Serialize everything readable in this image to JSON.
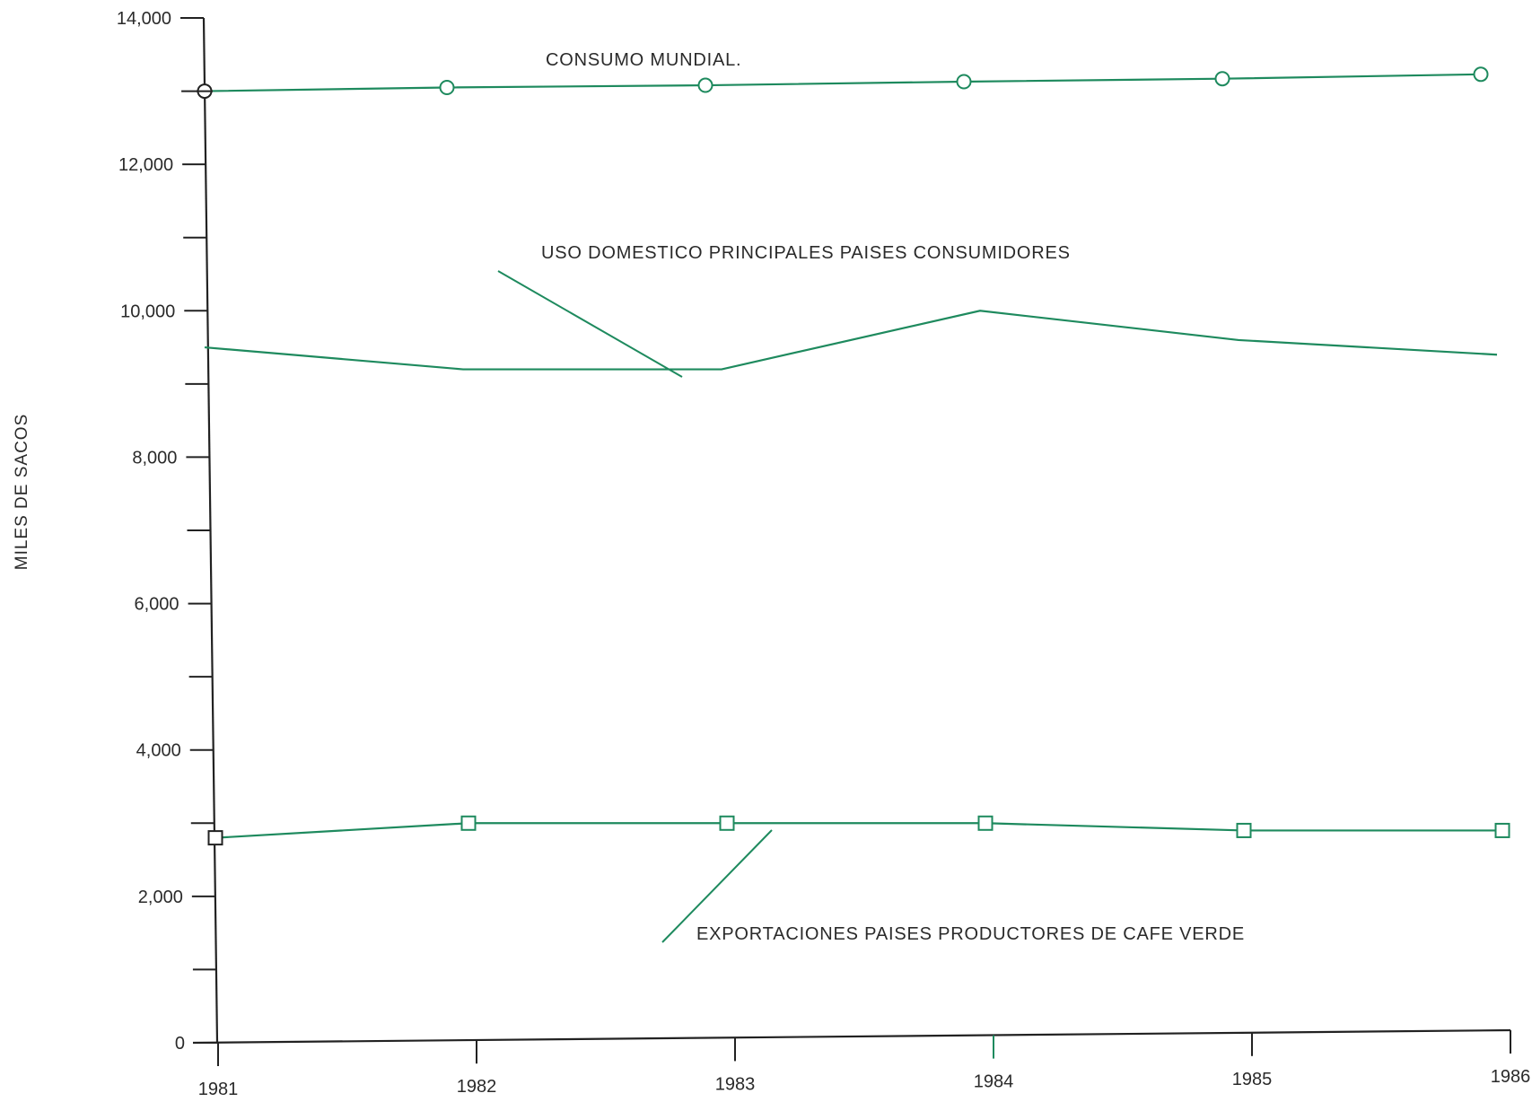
{
  "colors": {
    "series": "#1e8a5e",
    "axis": "#222222",
    "text": "#2a2a2a"
  },
  "chart_data": {
    "type": "line",
    "title": "",
    "xlabel": "",
    "ylabel": "MILES DE SACOS",
    "categories": [
      "1981",
      "1982",
      "1983",
      "1984",
      "1985",
      "1986"
    ],
    "x": [
      1981,
      1982,
      1983,
      1984,
      1985,
      1986
    ],
    "ylim": [
      0,
      14000
    ],
    "yticks": [
      0,
      2000,
      4000,
      6000,
      8000,
      10000,
      12000,
      14000
    ],
    "ytick_labels": [
      "0",
      "2,000",
      "4,000",
      "6,000",
      "8,000",
      "10,000",
      "12,000",
      "14,000"
    ],
    "grid": false,
    "legend": "none",
    "series": [
      {
        "name": "CONSUMO MUNDIAL.",
        "marker": "circle",
        "values": [
          13000,
          13050,
          13080,
          13130,
          13170,
          13230
        ]
      },
      {
        "name": "USO DOMESTICO PRINCIPALES PAISES CONSUMIDORES",
        "marker": "none",
        "values": [
          9500,
          9200,
          9200,
          10000,
          9600,
          9400
        ]
      },
      {
        "name": "EXPORTACIONES PAISES PRODUCTORES DE CAFE VERDE",
        "marker": "square",
        "values": [
          2800,
          3000,
          3000,
          3000,
          2900,
          2900
        ]
      }
    ]
  }
}
